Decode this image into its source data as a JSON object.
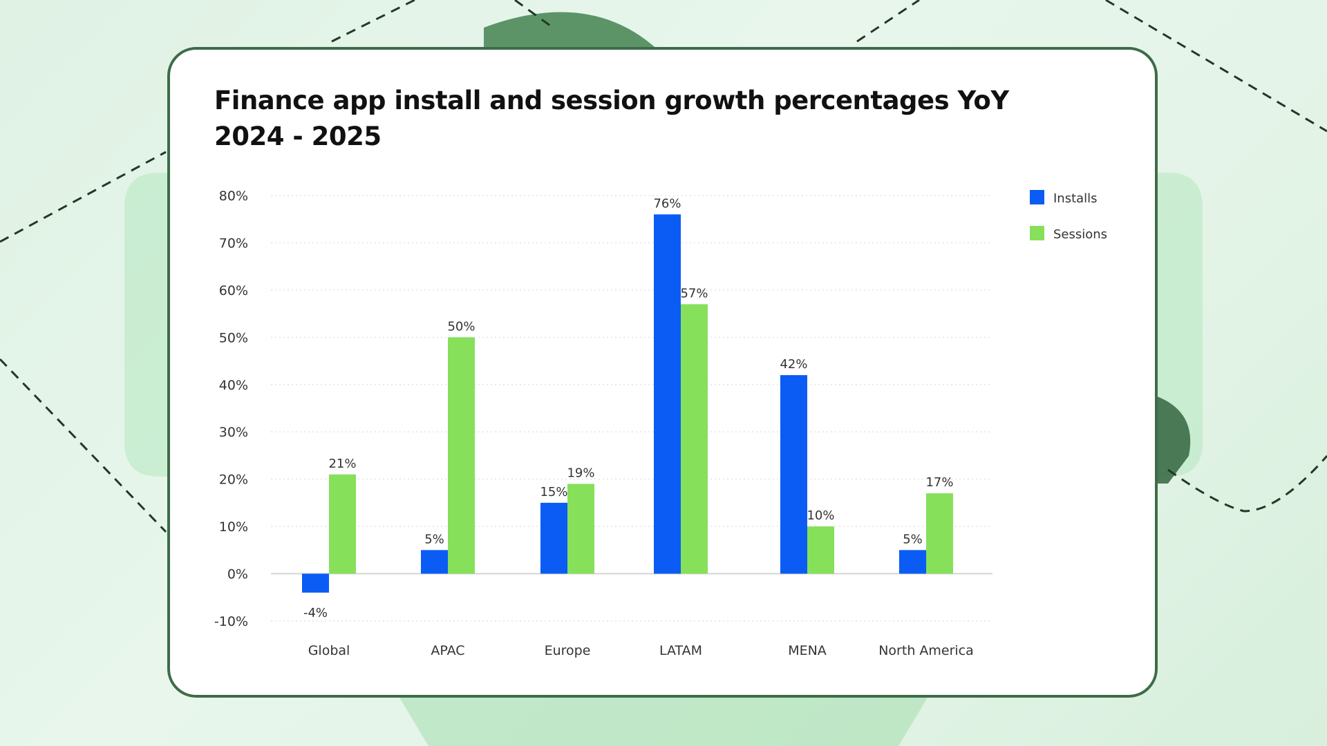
{
  "chart_data": {
    "type": "bar",
    "title_lines": [
      "Finance app install and session growth percentages YoY",
      "2024 - 2025"
    ],
    "categories": [
      "Global",
      "APAC",
      "Europe",
      "LATAM",
      "MENA",
      "North America"
    ],
    "series": [
      {
        "name": "Installs",
        "color": "#0a5cf5",
        "values": [
          -4,
          5,
          15,
          76,
          42,
          5
        ]
      },
      {
        "name": "Sessions",
        "color": "#86e05a",
        "values": [
          21,
          50,
          19,
          57,
          10,
          17
        ]
      }
    ],
    "ylim": [
      -10,
      80
    ],
    "yticks": [
      80,
      70,
      60,
      50,
      40,
      30,
      20,
      10,
      0,
      -10
    ],
    "value_suffix": "%",
    "grid": true,
    "legend": "top-right"
  }
}
